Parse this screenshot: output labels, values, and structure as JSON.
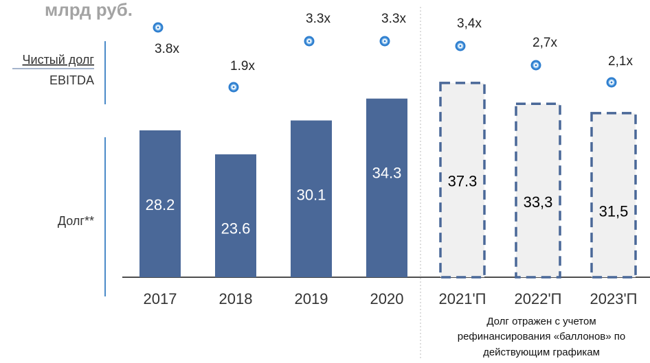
{
  "chart_data": {
    "type": "bar",
    "title": "млрд руб.",
    "ratio_label_top": "Чистый долг",
    "ratio_label_bottom": "EBITDA",
    "bar_axis_label": "Долг**",
    "categories": [
      "2017",
      "2018",
      "2019",
      "2020",
      "2021'П",
      "2022'П",
      "2023'П"
    ],
    "values": [
      28.2,
      23.6,
      30.1,
      34.3,
      37.3,
      33.3,
      31.5
    ],
    "value_labels": [
      "28.2",
      "23.6",
      "30.1",
      "34.3",
      "37.3",
      "33,3",
      "31,5"
    ],
    "forecast": [
      false,
      false,
      false,
      false,
      true,
      true,
      true
    ],
    "color": "#4a6898",
    "forecast_fill": "#f0f0f0",
    "ylim": [
      0,
      50
    ],
    "multiples": {
      "values": [
        3.8,
        1.9,
        3.3,
        3.3,
        3.4,
        2.7,
        2.1
      ],
      "value_labels": [
        "3.8x",
        "1.9x",
        "3.3x",
        "3.3x",
        "3,4x",
        "2,7x",
        "2,1x"
      ]
    },
    "note": [
      "Долг отражен с учетом",
      "рефинансирования «баллонов» по",
      "действующим графикам"
    ]
  }
}
